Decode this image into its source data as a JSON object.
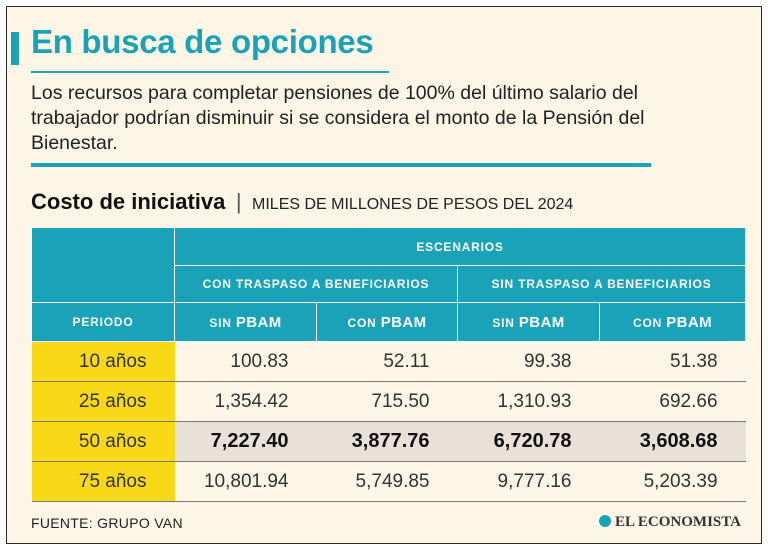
{
  "header": {
    "title": "En busca de opciones",
    "subtitle": "Los recursos para completar pensiones de 100% del último salario del trabajador podrían disminuir si se considera el monto de la Pensión del Bienestar."
  },
  "section": {
    "title": "Costo de iniciativa",
    "separator": "|",
    "units": "MILES DE MILLONES DE PESOS DEL 2024"
  },
  "table": {
    "group_header": "ESCENARIOS",
    "subgroups": [
      "CON TRASPASO A BENEFICIARIOS",
      "SIN TRASPASO A BENEFICIARIOS"
    ],
    "period_header": "PERIODO",
    "columns": [
      {
        "prefix": "SIN",
        "label": "PBAM"
      },
      {
        "prefix": "CON",
        "label": "PBAM"
      },
      {
        "prefix": "SIN",
        "label": "PBAM"
      },
      {
        "prefix": "CON",
        "label": "PBAM"
      }
    ],
    "rows": [
      {
        "period": "10 años",
        "values": [
          "100.83",
          "52.11",
          "99.38",
          "51.38"
        ]
      },
      {
        "period": "25 años",
        "values": [
          "1,354.42",
          "715.50",
          "1,310.93",
          "692.66"
        ]
      },
      {
        "period": "50 años",
        "values": [
          "7,227.40",
          "3,877.76",
          "6,720.78",
          "3,608.68"
        ]
      },
      {
        "period": "75 años",
        "values": [
          "10,801.94",
          "5,749.85",
          "9,777.16",
          "5,203.39"
        ]
      }
    ]
  },
  "footer": {
    "source": "FUENTE: GRUPO VAN",
    "brand": "EL ECONOMISTA"
  },
  "colors": {
    "accent": "#1aa3b8",
    "period_highlight": "#f7d917",
    "row_highlight": "#e7e1d8",
    "background": "#fdf6e6"
  }
}
